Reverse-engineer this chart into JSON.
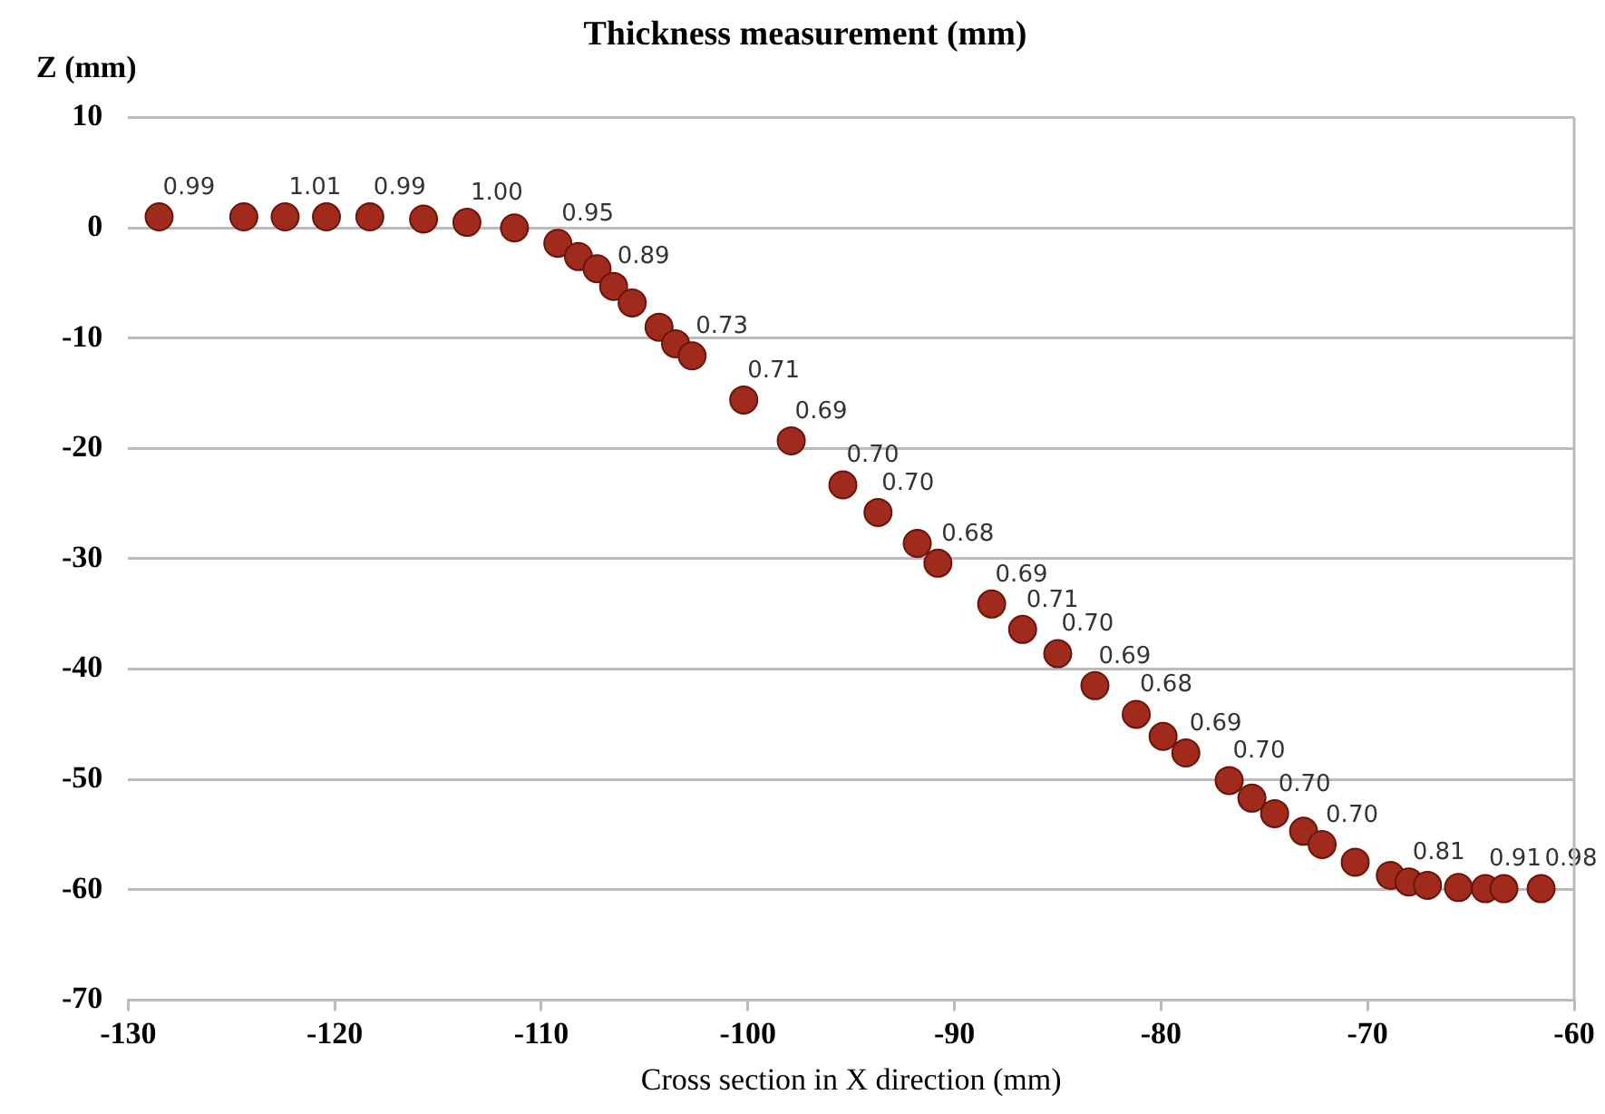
{
  "chart_data": {
    "type": "scatter",
    "title": "Thickness measurement (mm)",
    "xlabel": "Cross section in X direction (mm)",
    "ylabel": "Z (mm)",
    "x": [
      -128.5,
      -124.4,
      -122.4,
      -120.4,
      -118.3,
      -115.7,
      -113.6,
      -111.3,
      -109.2,
      -108.2,
      -107.3,
      -106.5,
      -105.6,
      -104.3,
      -103.5,
      -102.7,
      -100.2,
      -97.9,
      -95.4,
      -93.7,
      -91.8,
      -90.8,
      -88.2,
      -86.7,
      -85.0,
      -83.2,
      -81.2,
      -79.9,
      -78.8,
      -76.7,
      -75.6,
      -74.5,
      -73.1,
      -72.2,
      -70.6,
      -68.9,
      -68.0,
      -67.1,
      -65.6,
      -64.3,
      -63.4,
      -61.6
    ],
    "series": [
      {
        "color": "#a02a1c",
        "values": [
          1.0,
          1.0,
          1.0,
          1.0,
          1.0,
          0.8,
          0.5,
          0,
          -1.4,
          -2.6,
          -3.7,
          -5.3,
          -6.8,
          -9.0,
          -10.5,
          -11.6,
          -15.6,
          -19.3,
          -23.3,
          -25.8,
          -28.6,
          -30.4,
          -34.1,
          -36.4,
          -38.6,
          -41.5,
          -44.1,
          -46.1,
          -47.6,
          -50.1,
          -51.7,
          -53.1,
          -54.7,
          -55.9,
          -57.5,
          -58.7,
          -59.3,
          -59.6,
          -59.8,
          -59.9,
          -59.9,
          -59.9
        ]
      }
    ],
    "xlim": [
      -130,
      -60
    ],
    "xticks": [
      -130,
      -120,
      -110,
      -100,
      -90,
      -80,
      -70,
      -60
    ],
    "ylim": [
      -70,
      10
    ],
    "yticks": [
      -70,
      -60,
      -50,
      -40,
      -30,
      -20,
      -10,
      0,
      10
    ],
    "grid": "y",
    "legend": false,
    "marker": "circle",
    "annotations": [
      {
        "text": "0.99",
        "x": -128.5,
        "y": 1.0
      },
      {
        "text": "1.01",
        "x": -122.4,
        "y": 1.0
      },
      {
        "text": "0.99",
        "x": -118.3,
        "y": 1.0
      },
      {
        "text": "1.00",
        "x": -113.6,
        "y": 0.5
      },
      {
        "text": "0.95",
        "x": -109.2,
        "y": -1.4
      },
      {
        "text": "0.89",
        "x": -106.5,
        "y": -5.3
      },
      {
        "text": "0.73",
        "x": -102.7,
        "y": -11.6
      },
      {
        "text": "0.71",
        "x": -100.2,
        "y": -15.6
      },
      {
        "text": "0.69",
        "x": -97.9,
        "y": -19.3
      },
      {
        "text": "0.70",
        "x": -95.4,
        "y": -23.3
      },
      {
        "text": "0.70",
        "x": -93.7,
        "y": -25.8
      },
      {
        "text": "0.68",
        "x": -90.8,
        "y": -30.4
      },
      {
        "text": "0.69",
        "x": -88.2,
        "y": -34.1
      },
      {
        "text": "0.71",
        "x": -86.7,
        "y": -36.4
      },
      {
        "text": "0.70",
        "x": -85.0,
        "y": -38.6
      },
      {
        "text": "0.69",
        "x": -83.2,
        "y": -41.5
      },
      {
        "text": "0.68",
        "x": -81.2,
        "y": -44.1
      },
      {
        "text": "0.69",
        "x": -78.8,
        "y": -47.6
      },
      {
        "text": "0.70",
        "x": -76.7,
        "y": -50.1
      },
      {
        "text": "0.70",
        "x": -74.5,
        "y": -53.1
      },
      {
        "text": "0.70",
        "x": -72.2,
        "y": -55.9
      },
      {
        "text": "0.81",
        "x": -68.0,
        "y": -59.3
      },
      {
        "text": "0.91",
        "x": -64.3,
        "y": -59.9
      },
      {
        "text": "0.98",
        "x": -61.6,
        "y": -59.9
      }
    ]
  }
}
